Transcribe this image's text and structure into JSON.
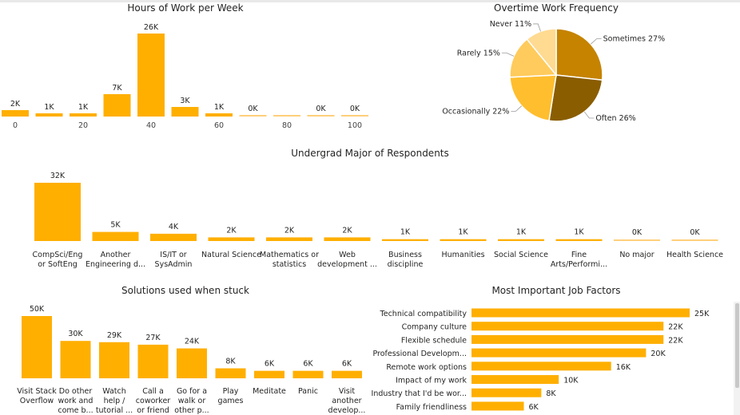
{
  "colors": {
    "bar": "#FFAF00",
    "bar_line": "#FFCF7A",
    "pie": [
      "#C58300",
      "#8A5D00",
      "#FFBE2E",
      "#FFCB5C",
      "#FFDA91"
    ]
  },
  "chart_data": [
    {
      "id": "hours",
      "type": "bar",
      "title": "Hours of Work per Week",
      "categories": [
        "0",
        "10",
        "20",
        "30",
        "40",
        "50",
        "60",
        "70",
        "80",
        "90",
        "100"
      ],
      "values": [
        2,
        1,
        1,
        7,
        26,
        3,
        1,
        0,
        0,
        0,
        0
      ],
      "data_labels": [
        "2K",
        "1K",
        "1K",
        "7K",
        "26K",
        "3K",
        "1K",
        "0K",
        "",
        "0K",
        "0K"
      ],
      "tick_labels": [
        "0",
        "20",
        "40",
        "60",
        "80",
        "100"
      ],
      "tick_values": [
        0,
        20,
        40,
        60,
        80,
        100
      ],
      "xlim": [
        0,
        100
      ],
      "unit": "thousands of respondents"
    },
    {
      "id": "overtime",
      "type": "pie",
      "title": "Overtime Work Frequency",
      "slices": [
        {
          "label": "Sometimes 27%",
          "name": "Sometimes",
          "value": 27
        },
        {
          "label": "Often 26%",
          "name": "Often",
          "value": 26
        },
        {
          "label": "Occasionally 22%",
          "name": "Occasionally",
          "value": 22
        },
        {
          "label": "Rarely 15%",
          "name": "Rarely",
          "value": 15
        },
        {
          "label": "Never 11%",
          "name": "Never",
          "value": 11
        }
      ]
    },
    {
      "id": "major",
      "type": "bar",
      "title": "Undergrad Major of Respondents",
      "categories": [
        [
          "CompSci/Eng",
          "or SoftEng"
        ],
        [
          "Another",
          "Engineering d..."
        ],
        [
          "IS/IT or",
          "SysAdmin"
        ],
        [
          "Natural Science"
        ],
        [
          "Mathematics or",
          "statistics"
        ],
        [
          "Web",
          "development ..."
        ],
        [
          "Business",
          "discipline"
        ],
        [
          "Humanities"
        ],
        [
          "Social Science"
        ],
        [
          "Fine",
          "Arts/Performi..."
        ],
        [
          "No major"
        ],
        [
          "Health Science"
        ]
      ],
      "values": [
        32,
        5,
        4,
        2,
        2,
        2,
        1,
        1,
        1,
        1,
        0,
        0
      ],
      "data_labels": [
        "32K",
        "5K",
        "4K",
        "2K",
        "2K",
        "2K",
        "1K",
        "1K",
        "1K",
        "1K",
        "0K",
        "0K"
      ]
    },
    {
      "id": "stuck",
      "type": "bar",
      "title": "Solutions used when stuck",
      "categories": [
        [
          "Visit Stack",
          "Overflow"
        ],
        [
          "Do other",
          "work and",
          "come b..."
        ],
        [
          "Watch",
          "help /",
          "tutorial ..."
        ],
        [
          "Call a",
          "coworker",
          "or friend"
        ],
        [
          "Go for a",
          "walk or",
          "other p..."
        ],
        [
          "Play",
          "games"
        ],
        [
          "Meditate"
        ],
        [
          "Panic"
        ],
        [
          "Visit",
          "another",
          "develop..."
        ]
      ],
      "values": [
        50,
        30,
        29,
        27,
        24,
        8,
        6,
        6,
        6
      ],
      "data_labels": [
        "50K",
        "30K",
        "29K",
        "27K",
        "24K",
        "8K",
        "6K",
        "6K",
        "6K"
      ]
    },
    {
      "id": "factors",
      "type": "hbar",
      "title": "Most Important Job Factors",
      "categories": [
        "Technical compatibility",
        "Company culture",
        "Flexible schedule",
        "Professional Developm...",
        "Remote work options",
        "Impact of my work",
        "Industry that I'd be wor...",
        "Family friendliness"
      ],
      "values": [
        25,
        22,
        22,
        20,
        16,
        10,
        8,
        6
      ],
      "data_labels": [
        "25K",
        "22K",
        "22K",
        "20K",
        "16K",
        "10K",
        "8K",
        "6K"
      ]
    }
  ]
}
